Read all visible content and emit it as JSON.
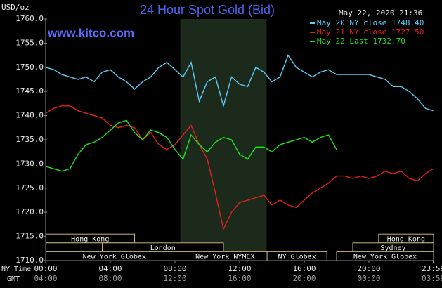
{
  "chart_data": {
    "type": "line",
    "title": "24 Hour Spot Gold (Bid)",
    "subtitle": "www.kitco.com",
    "y_label": "USD/oz",
    "timestamp": "May 22, 2020 21:36",
    "x_row_labels": [
      "NY Time",
      "GMT"
    ],
    "x": [
      0,
      0.5,
      1,
      1.5,
      2,
      2.5,
      3,
      3.5,
      4,
      4.5,
      5,
      5.5,
      6,
      6.5,
      7,
      7.5,
      8,
      8.5,
      9,
      9.5,
      10,
      10.5,
      11,
      11.5,
      12,
      12.5,
      13,
      13.5,
      14,
      14.5,
      15,
      15.5,
      16,
      16.5,
      17,
      17.5,
      18,
      18.5,
      19,
      19.5,
      20,
      20.5,
      21,
      21.5,
      22,
      22.5,
      23,
      23.5,
      23.98
    ],
    "series": [
      {
        "name": "May 20 NY close 1748.40",
        "color": "#5ccbf6",
        "values": [
          1750,
          1749.5,
          1748.5,
          1748,
          1747.5,
          1748,
          1747,
          1749,
          1749.5,
          1748,
          1747,
          1745.5,
          1747,
          1748,
          1750,
          1751,
          1749.5,
          1748,
          1751,
          1743,
          1747,
          1748,
          1742,
          1748,
          1746.5,
          1746,
          1750,
          1749,
          1747,
          1748,
          1752.5,
          1750,
          1749,
          1748,
          1749,
          1749.5,
          1748.5,
          1748.5,
          1748.5,
          1748.5,
          1748.5,
          1748,
          1747.5,
          1746,
          1746,
          1745,
          1743.5,
          1741.5,
          1741
        ]
      },
      {
        "name": "May 21 NY close 1727.50",
        "color": "#e8201c",
        "values": [
          1740.5,
          1741.5,
          1742,
          1742,
          1741,
          1740.5,
          1740,
          1739.5,
          1738,
          1737.5,
          1738,
          1737.5,
          1735,
          1736.5,
          1734,
          1733,
          1734,
          1736,
          1738,
          1734,
          1731,
          1724,
          1716.5,
          1720,
          1722,
          1722.5,
          1723,
          1723.5,
          1721.5,
          1722.5,
          1721.5,
          1721,
          1722.5,
          1724,
          1725,
          1726,
          1727.5,
          1727.5,
          1727,
          1727.5,
          1727,
          1727.5,
          1728.5,
          1728,
          1728.5,
          1727,
          1726.5,
          1728,
          1729
        ]
      },
      {
        "name": "May 22 Last 1732.70",
        "color": "#22e022",
        "values": [
          1729.5,
          1729,
          1728.5,
          1729,
          1732,
          1734,
          1734.5,
          1735.5,
          1737,
          1738.5,
          1739,
          1736.5,
          1735,
          1737,
          1736.5,
          1735.5,
          1733,
          1731,
          1736,
          1734,
          1732.5,
          1734.5,
          1735.5,
          1735,
          1732,
          1731,
          1733.5,
          1733.5,
          1732.5,
          1734,
          1734.5,
          1735,
          1735.5,
          1734.5,
          1735.5,
          1736,
          1733,
          null,
          null,
          null,
          null,
          null,
          null,
          null,
          null,
          null,
          null,
          null,
          null
        ]
      }
    ],
    "xlim": [
      0,
      24
    ],
    "xticks": [
      {
        "value": 0,
        "label": "00:00"
      },
      {
        "value": 4,
        "label": "04:00"
      },
      {
        "value": 8,
        "label": "08:00"
      },
      {
        "value": 12,
        "label": "12:00"
      },
      {
        "value": 16,
        "label": "16:00"
      },
      {
        "value": 20,
        "label": "20:00"
      },
      {
        "value": 23.98,
        "label": "23:59"
      }
    ],
    "gmt_ticks": [
      {
        "value": 0,
        "label": "04:00"
      },
      {
        "value": 4,
        "label": "08:00"
      },
      {
        "value": 8,
        "label": "12:00"
      },
      {
        "value": 12,
        "label": "16:00"
      },
      {
        "value": 16,
        "label": "20:00"
      },
      {
        "value": 20,
        "label": "00:00"
      },
      {
        "value": 23.98,
        "label": "03:59"
      }
    ],
    "ylim": [
      1710,
      1760
    ],
    "yticks": [
      {
        "value": 1710,
        "label": "1710.0"
      },
      {
        "value": 1715,
        "label": "1715.0"
      },
      {
        "value": 1720,
        "label": "1720.0"
      },
      {
        "value": 1725,
        "label": "1725.0"
      },
      {
        "value": 1730,
        "label": "1730.0"
      },
      {
        "value": 1735,
        "label": "1735.0"
      },
      {
        "value": 1740,
        "label": "1740.0"
      },
      {
        "value": 1745,
        "label": "1745.0"
      },
      {
        "value": 1750,
        "label": "1750.0"
      },
      {
        "value": 1755,
        "label": "1755.0"
      },
      {
        "value": 1760,
        "label": "1760.0"
      }
    ],
    "shaded_hours": [
      8.33,
      13.67
    ],
    "sessions": [
      [
        {
          "name": "Hong Kong",
          "start": 0,
          "end": 5.5
        },
        {
          "name": "Hong Kong",
          "start": 20.6,
          "end": 24
        }
      ],
      [
        {
          "name": null,
          "start": 0,
          "end": 3.5
        },
        {
          "name": "London",
          "start": 3.5,
          "end": 11
        },
        {
          "name": "Sydney",
          "start": 19,
          "end": 24
        }
      ],
      [
        {
          "name": "New York Globex",
          "start": 0,
          "end": 8.5
        },
        {
          "name": "New York NYMEX",
          "start": 8.5,
          "end": 13.7
        },
        {
          "name": "NY Globex",
          "start": 13.7,
          "end": 17.4
        },
        {
          "name": "New York Globex",
          "start": 18,
          "end": 24
        }
      ]
    ],
    "grid": false
  }
}
